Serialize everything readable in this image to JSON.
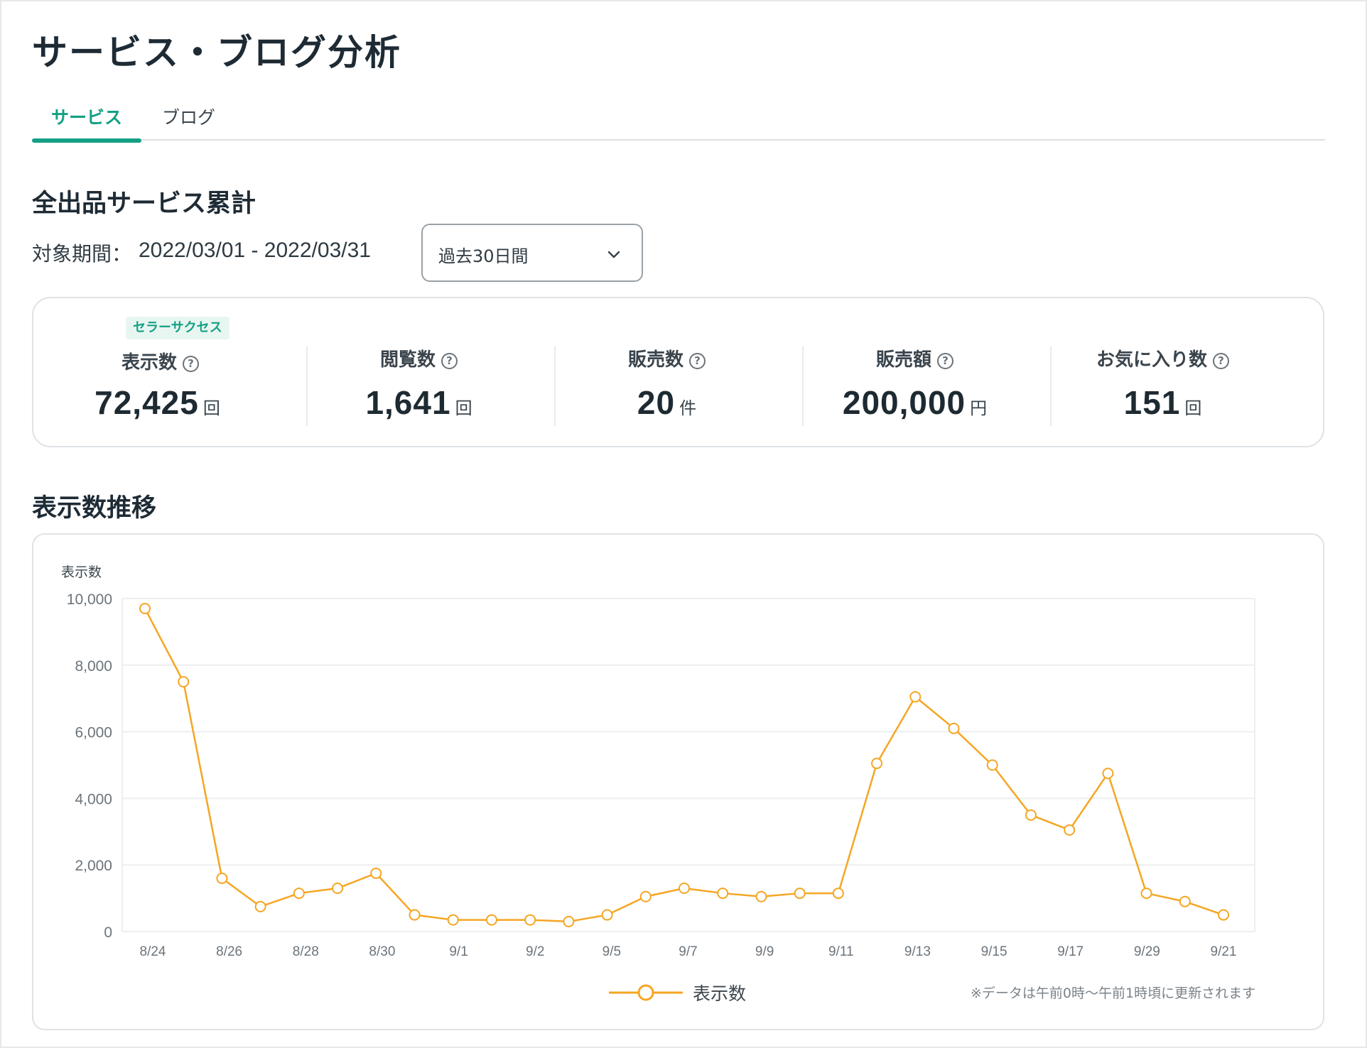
{
  "page": {
    "title": "サービス・ブログ分析"
  },
  "tabs": [
    {
      "label": "サービス",
      "active": true
    },
    {
      "label": "ブログ",
      "active": false
    }
  ],
  "summary": {
    "title": "全出品サービス累計",
    "period_label": "対象期間：",
    "period_value": "2022/03/01 - 2022/03/31",
    "range_select": {
      "value": "過去30日間"
    },
    "badge": "セラーサクセス",
    "stats": [
      {
        "label": "表示数",
        "value": "72,425",
        "unit": "回"
      },
      {
        "label": "閲覧数",
        "value": "1,641",
        "unit": "回"
      },
      {
        "label": "販売数",
        "value": "20",
        "unit": "件"
      },
      {
        "label": "販売額",
        "value": "200,000",
        "unit": "円"
      },
      {
        "label": "お気に入り数",
        "value": "151",
        "unit": "回"
      }
    ]
  },
  "trend": {
    "title": "表示数推移",
    "note": "※データは午前0時〜午前1時頃に更新されます"
  },
  "colors": {
    "accent": "#14a085",
    "line": "#f5a623"
  },
  "chart_data": {
    "type": "line",
    "ylabel": "表示数",
    "ylim": [
      0,
      10000
    ],
    "yticks": [
      "10,000",
      "8,000",
      "6,000",
      "4,000",
      "2,000",
      "0"
    ],
    "xtick_labels": [
      "8/24",
      "8/26",
      "8/28",
      "8/30",
      "9/1",
      "9/2",
      "9/5",
      "9/7",
      "9/9",
      "9/11",
      "9/13",
      "9/15",
      "9/17",
      "9/29",
      "9/21"
    ],
    "grid": true,
    "legend_position": "bottom",
    "series": [
      {
        "name": "表示数",
        "values": [
          9700,
          7500,
          1600,
          750,
          1150,
          1300,
          1750,
          500,
          350,
          350,
          350,
          300,
          500,
          1050,
          1300,
          1150,
          1050,
          1150,
          1150,
          5050,
          7050,
          6100,
          5000,
          3500,
          3050,
          4750,
          1150,
          900,
          500
        ]
      }
    ]
  }
}
